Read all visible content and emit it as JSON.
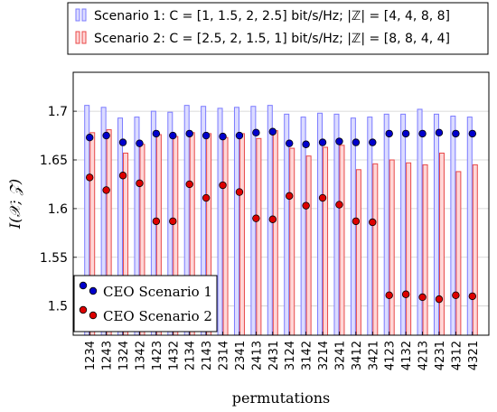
{
  "chart_data": {
    "type": "bar",
    "xlabel": "permutations",
    "ylabel": "I(𝒳; 𝒵)",
    "ylim": [
      1.47,
      1.74
    ],
    "yticks": [
      1.5,
      1.55,
      1.6,
      1.65,
      1.7
    ],
    "ytick_labels": [
      "1.5",
      "1.55",
      "1.6",
      "1.65",
      "1.7"
    ],
    "grid": "horizontal",
    "categories": [
      "1234",
      "1243",
      "1324",
      "1342",
      "1423",
      "1432",
      "2134",
      "2143",
      "2314",
      "2341",
      "2413",
      "2431",
      "3124",
      "3142",
      "3214",
      "3241",
      "3412",
      "3421",
      "4123",
      "4132",
      "4213",
      "4231",
      "4312",
      "4321"
    ],
    "bar_series": [
      {
        "name": "Scenario 1:  C = [1, 1.5, 2, 2.5]  bit/s/Hz; |ℤ| = [4, 4, 8, 8]",
        "color": "#7b7bff",
        "fill": "#dcdcff",
        "values": [
          1.706,
          1.704,
          1.693,
          1.694,
          1.7,
          1.699,
          1.706,
          1.705,
          1.703,
          1.704,
          1.705,
          1.706,
          1.697,
          1.694,
          1.698,
          1.697,
          1.693,
          1.694,
          1.697,
          1.697,
          1.702,
          1.697,
          1.695,
          1.694
        ]
      },
      {
        "name": "Scenario 2:  C = [2.5, 2, 1.5, 1]  bit/s/Hz; |ℤ| = [8, 8, 4, 4]",
        "color": "#e84848",
        "fill": "#ffd6d6",
        "values": [
          1.678,
          1.681,
          1.657,
          1.666,
          1.676,
          1.674,
          1.678,
          1.677,
          1.673,
          1.677,
          1.672,
          1.68,
          1.662,
          1.654,
          1.663,
          1.665,
          1.64,
          1.646,
          1.65,
          1.647,
          1.645,
          1.657,
          1.638,
          1.645
        ]
      }
    ],
    "marker_series": [
      {
        "name": "CEO Scenario 1",
        "color": "#0000cc",
        "values": [
          1.673,
          1.675,
          1.668,
          1.667,
          1.677,
          1.675,
          1.677,
          1.675,
          1.674,
          1.675,
          1.678,
          1.679,
          1.667,
          1.666,
          1.668,
          1.669,
          1.668,
          1.668,
          1.677,
          1.677,
          1.677,
          1.678,
          1.677,
          1.677
        ]
      },
      {
        "name": "CEO Scenario 2",
        "color": "#dd0000",
        "values": [
          1.632,
          1.619,
          1.634,
          1.626,
          1.587,
          1.587,
          1.625,
          1.611,
          1.624,
          1.617,
          1.59,
          1.589,
          1.613,
          1.603,
          1.611,
          1.604,
          1.587,
          1.586,
          1.511,
          1.512,
          1.509,
          1.507,
          1.511,
          1.51
        ]
      }
    ],
    "legend_top_placement": "top (above axes)",
    "legend_bottom_placement": "bottom-left"
  }
}
